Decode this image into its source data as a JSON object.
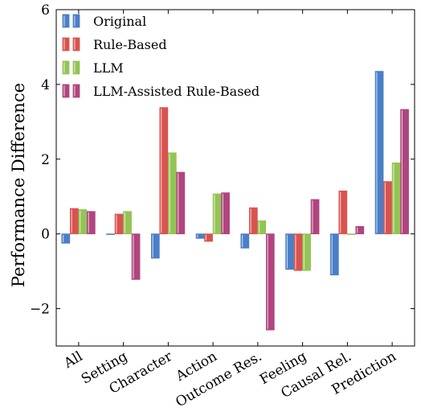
{
  "chart_data": {
    "type": "bar",
    "title": "",
    "xlabel": "",
    "ylabel": "Performance Difference",
    "ylim": [
      -3,
      6
    ],
    "yticks": [
      -2,
      0,
      2,
      4,
      6
    ],
    "ytick_labels": [
      "−2",
      "0",
      "2",
      "4",
      "6"
    ],
    "grid": false,
    "legend_position": "top-left",
    "categories": [
      "All",
      "Setting",
      "Character",
      "Action",
      "Outcome Res.",
      "Feeling",
      "Causal Rel.",
      "Prediction"
    ],
    "series": [
      {
        "name": "Original",
        "color": "#4a7fc8",
        "values": [
          -0.25,
          0.0,
          -0.65,
          -0.12,
          -0.38,
          -0.95,
          -1.1,
          4.35
        ]
      },
      {
        "name": "Rule-Based",
        "color": "#d9534f",
        "values": [
          0.68,
          0.53,
          3.38,
          -0.2,
          0.7,
          -0.98,
          1.15,
          1.4
        ]
      },
      {
        "name": "LLM",
        "color": "#93c454",
        "values": [
          0.65,
          0.6,
          2.17,
          1.07,
          0.35,
          -0.98,
          0.0,
          1.9
        ]
      },
      {
        "name": "LLM-Assisted Rule-Based",
        "color": "#b0457f",
        "values": [
          0.6,
          -1.22,
          1.65,
          1.1,
          -2.57,
          0.92,
          0.2,
          3.33
        ]
      }
    ]
  }
}
